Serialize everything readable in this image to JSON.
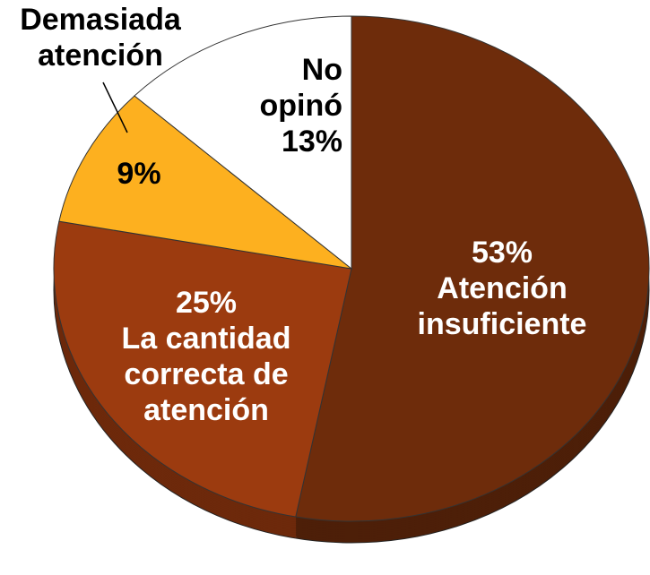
{
  "chart_data": {
    "type": "pie",
    "categories": [
      "Atención insuficiente",
      "La cantidad correcta de atención",
      "Demasiada atención",
      "No opinó"
    ],
    "values": [
      53,
      25,
      9,
      13
    ],
    "value_labels": [
      "53%",
      "25%",
      "9%",
      "13%"
    ],
    "colors": [
      "#6e2c0b",
      "#9c3b0f",
      "#fdb01f",
      "#ffffff"
    ]
  }
}
